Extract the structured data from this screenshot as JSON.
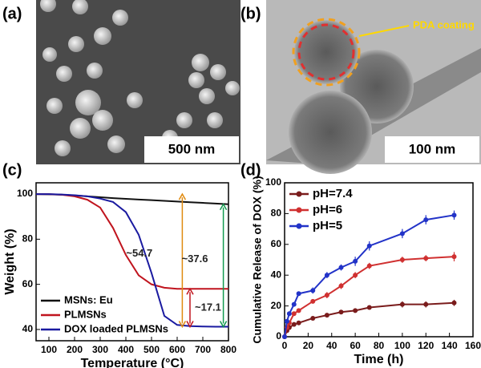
{
  "panel_labels": [
    "(a)",
    "(b)",
    "(c)",
    "(d)"
  ],
  "images": [
    {
      "scale_bar": "500 nm"
    },
    {
      "scale_bar": "100 nm",
      "annotation": "PDA coating"
    }
  ],
  "chart_data": [
    {
      "type": "line",
      "x_label": "Temperature (°C)",
      "y_label": "Weight (%)",
      "x": [
        50,
        100,
        150,
        200,
        250,
        300,
        350,
        400,
        450,
        500,
        550,
        600,
        650,
        700,
        750,
        800
      ],
      "series": [
        {
          "name": "MSNs: Eu",
          "color": "#111111",
          "values": [
            100,
            99.9,
            99.7,
            99.4,
            99,
            98.6,
            98.2,
            97.9,
            97.6,
            97.3,
            97,
            96.7,
            96.4,
            96.1,
            95.8,
            95.5
          ]
        },
        {
          "name": "PLMSNs",
          "color": "#c0141e",
          "values": [
            100,
            100,
            99.7,
            99,
            97.5,
            94,
            85,
            73,
            64,
            60,
            58.5,
            58,
            58,
            58,
            58,
            58
          ]
        },
        {
          "name": "DOX loaded PLMSNs",
          "color": "#1a1aa0",
          "values": [
            100,
            100,
            99.8,
            99.5,
            99,
            98,
            96.5,
            92,
            82,
            65,
            46,
            42,
            41.5,
            41.3,
            41.2,
            41.2
          ]
        }
      ],
      "annotations": [
        "~54.7",
        "~37.6",
        "~17.1"
      ],
      "xlim": [
        50,
        800
      ],
      "xticks": [
        100,
        200,
        300,
        400,
        500,
        600,
        700,
        800
      ],
      "ylim": [
        35,
        105
      ],
      "yticks": [
        40,
        60,
        80,
        100
      ],
      "legend": "lower-left"
    },
    {
      "type": "scatter",
      "x_label": "Time (h)",
      "y_label": "Cumulative Release of DOX (%)",
      "x": [
        0,
        2,
        4,
        8,
        12,
        24,
        36,
        48,
        60,
        72,
        100,
        120,
        144
      ],
      "series": [
        {
          "name": "pH=7.4",
          "color": "#7a1c1c",
          "values": [
            0,
            4,
            6,
            8,
            9,
            12,
            14,
            16,
            17,
            19,
            21,
            21,
            22
          ],
          "errors": [
            1,
            1,
            1,
            1,
            1,
            1,
            1,
            1,
            1,
            1,
            2,
            2,
            2
          ]
        },
        {
          "name": "pH=6",
          "color": "#d03030",
          "values": [
            0,
            6,
            9,
            15,
            17,
            23,
            27,
            33,
            40,
            46,
            50,
            51,
            52
          ],
          "errors": [
            1,
            1,
            1,
            1,
            1,
            1,
            2,
            2,
            2,
            2,
            2,
            2,
            3
          ]
        },
        {
          "name": "pH=5",
          "color": "#2233c8",
          "values": [
            0,
            10,
            15,
            21,
            28,
            30,
            40,
            45,
            49,
            59,
            67,
            76,
            79
          ],
          "errors": [
            1,
            1,
            1,
            1,
            1,
            2,
            2,
            2,
            3,
            3,
            3,
            3,
            3
          ]
        }
      ],
      "xlim": [
        0,
        160
      ],
      "xticks": [
        0,
        20,
        40,
        60,
        80,
        100,
        120,
        140,
        160
      ],
      "ylim": [
        0,
        100
      ],
      "yticks": [
        0,
        20,
        40,
        60,
        80,
        100
      ],
      "legend": "upper-left"
    }
  ]
}
